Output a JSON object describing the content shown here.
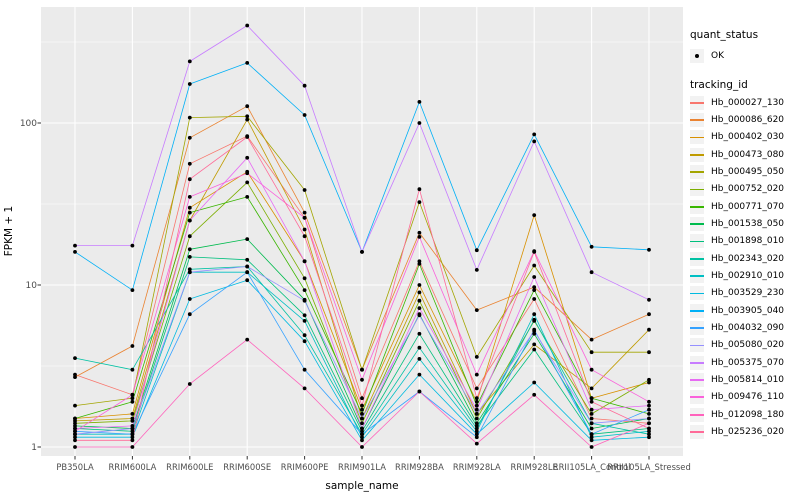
{
  "chart_data": {
    "type": "line",
    "xlabel": "sample_name",
    "ylabel": "FPKM + 1",
    "y_scale": "log10",
    "y_breaks": [
      1,
      10,
      100
    ],
    "y_tick_labels": [
      "1",
      "10",
      "100"
    ],
    "y_minor_breaks": [
      3.162,
      31.62,
      316.2
    ],
    "ylim": [
      0.88,
      520
    ],
    "grid": "on",
    "legend_position": "right",
    "categories": [
      "PB350LA",
      "RRIM600LA",
      "RRIM600LE",
      "RRIM600SE",
      "RRIM600PE",
      "RRIM901LA",
      "RRIM928BA",
      "RRIM928LA",
      "RRIM928LE",
      "RRII105LA_Control",
      "RRII105LA_Stressed"
    ],
    "series": [
      {
        "name": "Hb_000027_130",
        "color": "#F8766D",
        "values": [
          2.8,
          2.1,
          56,
          83,
          26,
          2.0,
          14,
          2.3,
          8.2,
          1.5,
          1.4
        ]
      },
      {
        "name": "Hb_000086_620",
        "color": "#EA8331",
        "values": [
          2.7,
          4.2,
          81,
          127,
          28,
          3.0,
          21,
          7.0,
          9.7,
          4.6,
          6.6
        ]
      },
      {
        "name": "Hb_000402_030",
        "color": "#D89000",
        "values": [
          1.5,
          1.6,
          30,
          50,
          14,
          1.7,
          10,
          1.9,
          27,
          2.0,
          2.5
        ]
      },
      {
        "name": "Hb_000473_080",
        "color": "#C09B00",
        "values": [
          1.45,
          1.5,
          25,
          105,
          22,
          1.5,
          9.0,
          1.6,
          4.3,
          2.3,
          5.3
        ]
      },
      {
        "name": "Hb_000495_050",
        "color": "#A3A500",
        "values": [
          1.8,
          2.0,
          108,
          110,
          38.6,
          3.0,
          32.5,
          3.6,
          13.2,
          3.85,
          3.85
        ]
      },
      {
        "name": "Hb_000752_020",
        "color": "#7CAE00",
        "values": [
          1.4,
          1.45,
          20,
          43,
          11,
          1.4,
          8.0,
          1.5,
          6.0,
          1.6,
          2.6
        ]
      },
      {
        "name": "Hb_000771_070",
        "color": "#39B600",
        "values": [
          1.5,
          1.9,
          28,
          35,
          9.3,
          1.6,
          13.5,
          1.8,
          9.3,
          2.0,
          1.6
        ]
      },
      {
        "name": "Hb_001538_050",
        "color": "#00BB4E",
        "values": [
          1.35,
          1.3,
          16.6,
          19.2,
          8.1,
          1.3,
          6.6,
          1.4,
          5.0,
          1.3,
          1.5
        ]
      },
      {
        "name": "Hb_001898_010",
        "color": "#00BF7D",
        "values": [
          1.3,
          1.25,
          14.9,
          14.3,
          6.5,
          1.25,
          5.0,
          1.35,
          4.0,
          1.2,
          1.3
        ]
      },
      {
        "name": "Hb_002343_020",
        "color": "#00C1A3",
        "values": [
          3.54,
          3.0,
          12.5,
          13,
          4.9,
          1.2,
          4.1,
          1.3,
          6.1,
          1.4,
          1.2
        ]
      },
      {
        "name": "Hb_002910_010",
        "color": "#00BFC4",
        "values": [
          1.2,
          1.2,
          12.0,
          12,
          6.0,
          1.15,
          3.5,
          1.25,
          6.6,
          1.15,
          1.25
        ]
      },
      {
        "name": "Hb_003529_230",
        "color": "#00BAE0",
        "values": [
          1.15,
          1.15,
          8.2,
          10.7,
          4.5,
          1.1,
          2.8,
          1.2,
          2.5,
          1.1,
          1.15
        ]
      },
      {
        "name": "Hb_003905_040",
        "color": "#00B0F6",
        "values": [
          16,
          9.3,
          174,
          235,
          112,
          16,
          135,
          16.4,
          85,
          17.2,
          16.5
        ]
      },
      {
        "name": "Hb_004032_090",
        "color": "#35A2FF",
        "values": [
          1.25,
          1.2,
          6.6,
          12,
          3.0,
          1.2,
          2.2,
          1.15,
          5.3,
          1.2,
          1.7
        ]
      },
      {
        "name": "Hb_005080_020",
        "color": "#9590FF",
        "values": [
          1.2,
          1.3,
          12,
          13,
          8.0,
          1.5,
          6.5,
          1.6,
          5.2,
          1.4,
          1.5
        ]
      },
      {
        "name": "Hb_005375_070",
        "color": "#C77CFF",
        "values": [
          17.5,
          17.5,
          240,
          400,
          170,
          16,
          100,
          12.4,
          77,
          12,
          8.1
        ]
      },
      {
        "name": "Hb_005814_010",
        "color": "#E76BF3",
        "values": [
          1.3,
          1.35,
          25,
          61,
          14,
          1.3,
          7.2,
          1.7,
          11.2,
          1.7,
          1.8
        ]
      },
      {
        "name": "Hb_009476_110",
        "color": "#FA62DB",
        "values": [
          1.25,
          2.1,
          35,
          49,
          26,
          2.6,
          19.8,
          2.8,
          16.2,
          3.0,
          1.9
        ]
      },
      {
        "name": "Hb_012098_180",
        "color": "#FF62BC",
        "values": [
          1.0,
          1.0,
          2.45,
          4.6,
          2.3,
          1.0,
          2.2,
          1.05,
          2.1,
          1.0,
          1.4
        ]
      },
      {
        "name": "Hb_025236_020",
        "color": "#FF6A98",
        "values": [
          1.1,
          1.1,
          45,
          82,
          20,
          1.8,
          39,
          2.0,
          16,
          1.9,
          1.3
        ]
      }
    ],
    "legend": {
      "quant_status_title": "quant_status",
      "quant_status_items": [
        {
          "label": "OK",
          "marker": "point"
        }
      ],
      "tracking_id_title": "tracking_id"
    },
    "colors": {
      "panel_bg": "#EBEBEB",
      "grid": "#FFFFFF",
      "axis_text": "#4D4D4D",
      "axis_title": "#000000",
      "point": "#000000",
      "legend_key_bg": "#F2F2F2",
      "tick_mark": "#333333"
    }
  }
}
